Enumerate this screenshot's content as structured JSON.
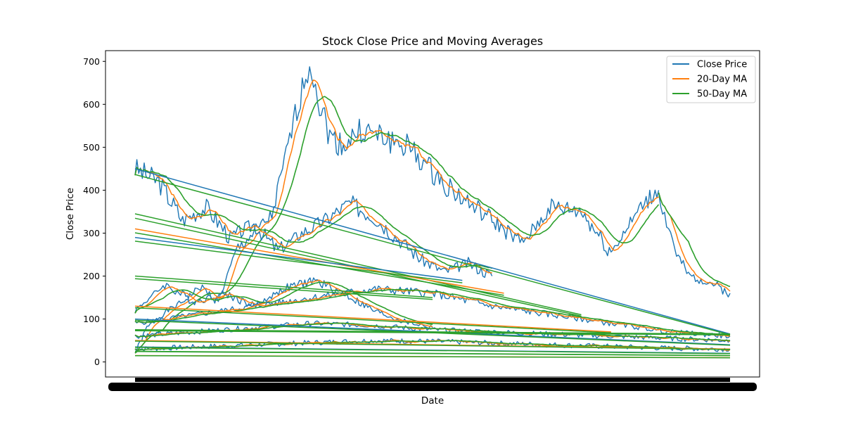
{
  "chart_data": {
    "type": "line",
    "title": "Stock Close Price and Moving Averages",
    "xlabel": "Date",
    "ylabel": "Close Price",
    "ylim": [
      -35,
      725
    ],
    "yticks": [
      0,
      100,
      200,
      300,
      400,
      500,
      600,
      700
    ],
    "grid": false,
    "legend_position": "top-right",
    "x_tick_labels_legible": false,
    "series": [
      {
        "name": "Close Price",
        "color": "#1f77b4"
      },
      {
        "name": "20-Day MA",
        "color": "#ff7f0e"
      },
      {
        "name": "50-Day MA",
        "color": "#2ca02c"
      }
    ],
    "segments": [
      {
        "x": [
          0,
          0.02,
          0.05,
          0.08,
          0.11,
          0.14,
          0.17,
          0.2,
          0.23,
          0.26,
          0.29,
          0.3,
          0.31,
          0.33,
          0.35,
          0.38,
          0.42,
          0.46,
          0.5,
          0.55,
          0.6,
          0.65,
          0.7,
          0.75,
          0.8,
          0.85,
          0.88
        ],
        "y": [
          20,
          80,
          115,
          140,
          175,
          140,
          260,
          300,
          340,
          520,
          685,
          680,
          600,
          520,
          505,
          540,
          520,
          500,
          440,
          380,
          330,
          275,
          360,
          350,
          255,
          360,
          400
        ]
      },
      {
        "x": [
          0.88,
          0.89,
          0.9,
          0.91,
          0.93,
          0.96,
          1.0
        ],
        "y": [
          400,
          340,
          300,
          250,
          200,
          190,
          160
        ]
      },
      {
        "x": [
          0,
          0.04,
          0.08,
          0.12,
          0.16,
          0.2,
          0.24,
          0.28,
          0.32,
          0.36,
          0.4,
          0.44,
          0.48,
          0.52,
          0.56,
          0.6
        ],
        "y": [
          450,
          420,
          330,
          360,
          290,
          320,
          260,
          300,
          330,
          370,
          340,
          290,
          240,
          210,
          230,
          200
        ]
      },
      {
        "x": [
          0,
          0.05,
          0.1,
          0.15,
          0.2,
          0.25,
          0.3,
          0.35,
          0.4,
          0.45,
          0.5
        ],
        "y": [
          120,
          180,
          140,
          160,
          130,
          170,
          190,
          160,
          120,
          95,
          80
        ]
      },
      {
        "x": [
          0,
          0.1,
          0.2,
          0.3,
          0.4,
          0.5,
          0.6,
          0.7,
          0.8,
          0.9,
          1.0
        ],
        "y": [
          90,
          110,
          130,
          150,
          170,
          160,
          130,
          110,
          90,
          70,
          60
        ]
      },
      {
        "x": [
          0,
          0.1,
          0.2,
          0.3,
          0.4,
          0.5,
          0.6,
          0.7,
          0.8,
          0.9,
          1.0
        ],
        "y": [
          60,
          70,
          80,
          90,
          85,
          75,
          70,
          65,
          60,
          55,
          50
        ]
      },
      {
        "x": [
          0,
          0.1,
          0.2,
          0.3,
          0.4,
          0.5,
          0.6,
          0.7,
          0.8,
          0.9,
          1.0
        ],
        "y": [
          30,
          35,
          40,
          45,
          50,
          48,
          44,
          40,
          36,
          32,
          30
        ]
      }
    ],
    "trend_lines": [
      {
        "x": [
          0,
          1.0
        ],
        "y": [
          450,
          65
        ]
      },
      {
        "x": [
          0,
          0.75
        ],
        "y": [
          345,
          110
        ]
      },
      {
        "x": [
          0,
          0.62
        ],
        "y": [
          310,
          160
        ]
      },
      {
        "x": [
          0,
          0.55
        ],
        "y": [
          290,
          190
        ]
      },
      {
        "x": [
          0,
          0.5
        ],
        "y": [
          200,
          150
        ]
      },
      {
        "x": [
          0,
          0.8
        ],
        "y": [
          130,
          70
        ]
      },
      {
        "x": [
          0,
          1.0
        ],
        "y": [
          100,
          40
        ]
      },
      {
        "x": [
          0,
          1.0
        ],
        "y": [
          75,
          65
        ]
      },
      {
        "x": [
          0,
          1.0
        ],
        "y": [
          50,
          30
        ]
      },
      {
        "x": [
          0,
          1.0
        ],
        "y": [
          35,
          20
        ]
      },
      {
        "x": [
          0,
          1.0
        ],
        "y": [
          25,
          15
        ]
      },
      {
        "x": [
          0,
          1.0
        ],
        "y": [
          15,
          10
        ]
      }
    ]
  }
}
